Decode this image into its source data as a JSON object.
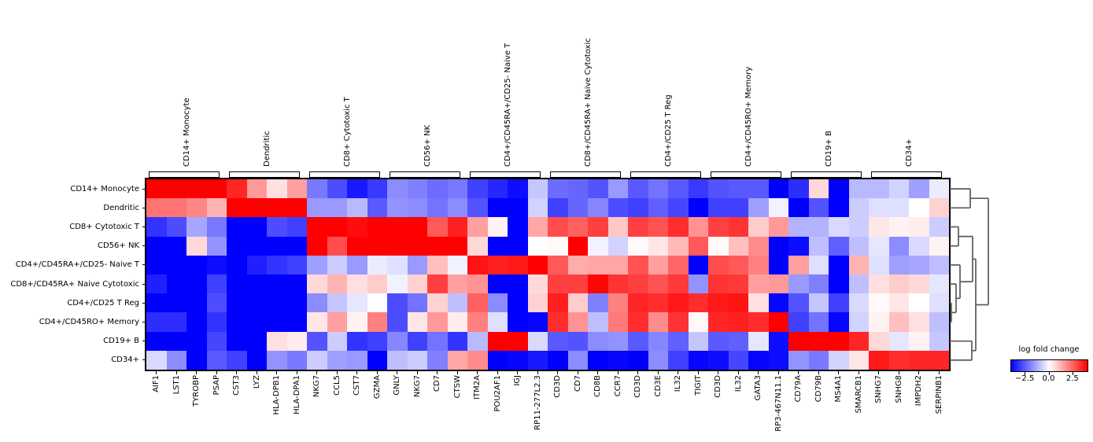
{
  "chart_data": {
    "type": "heatmap",
    "title": "",
    "colormap": "bwr",
    "vmin": -4,
    "vmax": 4,
    "rows": [
      "CD14+ Monocyte",
      "Dendritic",
      "CD8+ Cytotoxic T",
      "CD56+ NK",
      "CD4+/CD45RA+/CD25- Naive T",
      "CD8+/CD45RA+ Naive Cytotoxic",
      "CD4+/CD25 T Reg",
      "CD4+/CD45RO+ Memory",
      "CD19+ B",
      "CD34+"
    ],
    "columns": [
      "AIF1",
      "LST1",
      "TYROBP",
      "PSAP",
      "CST3",
      "LYZ",
      "HLA-DPB1",
      "HLA-DPA1",
      "NKG7",
      "CCL5",
      "CST7",
      "GZMA",
      "GNLY",
      "NKG7",
      "CD7",
      "CTSW",
      "ITM2A",
      "POU2AF1",
      "IGJ",
      "RP11-277L2.3",
      "CD3D",
      "CD7",
      "CD8B",
      "CCR7",
      "CD3D",
      "CD3E",
      "IL32",
      "TIGIT",
      "CD3D",
      "IL32",
      "GATA3",
      "RP3-467N11.1",
      "CD79A",
      "CD79B",
      "MS4A1",
      "SMARCB1",
      "SNHG7",
      "SNHG8",
      "IMPDH2",
      "SERPINB1"
    ],
    "groups": [
      {
        "label": "CD14+ Monocyte",
        "start": 0,
        "end": 3
      },
      {
        "label": "Dendritic",
        "start": 4,
        "end": 7
      },
      {
        "label": "CD8+ Cytotoxic T",
        "start": 8,
        "end": 11
      },
      {
        "label": "CD56+ NK",
        "start": 12,
        "end": 15
      },
      {
        "label": "CD4+/CD45RA+/CD25- Naive T",
        "start": 16,
        "end": 19
      },
      {
        "label": "CD8+/CD45RA+ Naive Cytotoxic",
        "start": 20,
        "end": 23
      },
      {
        "label": "CD4+/CD25 T Reg",
        "start": 24,
        "end": 27
      },
      {
        "label": "CD4+/CD45RO+ Memory",
        "start": 28,
        "end": 31
      },
      {
        "label": "CD19+ B",
        "start": 32,
        "end": 35
      },
      {
        "label": "CD34+",
        "start": 36,
        "end": 39
      }
    ],
    "values": [
      [
        4,
        4,
        4,
        4,
        3.4,
        1.6,
        0.5,
        1.5,
        -2.1,
        -2.8,
        -3.6,
        -3.1,
        -1.8,
        -2.0,
        -2.3,
        -2.1,
        -3.0,
        -3.4,
        -3.8,
        -0.9,
        -2.3,
        -2.4,
        -2.7,
        -1.6,
        -2.6,
        -2.2,
        -2.6,
        -3.1,
        -2.7,
        -2.6,
        -2.6,
        -4,
        -3.3,
        0.6,
        -4,
        -1.1,
        -1.1,
        -0.7,
        -1.5,
        -0.3
      ],
      [
        2.2,
        2.2,
        1.9,
        1.2,
        4,
        4,
        4,
        4,
        -1.6,
        -1.6,
        -1.1,
        -2.6,
        -1.7,
        -1.8,
        -2.2,
        -1.8,
        -2.7,
        -4,
        -4,
        -0.7,
        -3.0,
        -2.4,
        -1.9,
        -2.8,
        -3.0,
        -2.5,
        -2.9,
        -4,
        -3.0,
        -3.0,
        -1.5,
        -0.2,
        -4,
        -2.7,
        -4,
        -0.8,
        -0.5,
        -0.5,
        0.0,
        0.7
      ],
      [
        -3.2,
        -2.8,
        -1.4,
        -2.1,
        -4,
        -4,
        -2.8,
        -3.0,
        4,
        4,
        3.8,
        4,
        4,
        4,
        2.6,
        3.5,
        1.5,
        0.2,
        -4,
        1.4,
        2.8,
        2.5,
        3.0,
        0.9,
        3.0,
        2.7,
        3.3,
        1.7,
        3.0,
        3.2,
        0.8,
        1.6,
        -1.2,
        -1.2,
        -0.6,
        -0.8,
        0.4,
        0.2,
        0.3,
        -0.8
      ],
      [
        -4,
        -4,
        0.6,
        -1.7,
        -4,
        -4,
        -4,
        -4,
        4,
        2.8,
        4,
        4,
        4,
        4,
        4,
        4,
        0.6,
        -4,
        -4,
        0.0,
        0.1,
        4,
        -0.2,
        -0.7,
        0.1,
        0.4,
        1.1,
        2.6,
        0.1,
        1.0,
        1.8,
        -4,
        -3.8,
        -1.0,
        -2.5,
        -1.0,
        -0.4,
        -1.8,
        -0.6,
        0.2
      ],
      [
        -4,
        -4,
        -4,
        -3.8,
        -4,
        -3.5,
        -3.2,
        -3.0,
        -1.5,
        -0.8,
        -1.6,
        -0.3,
        -0.5,
        -1.6,
        1.0,
        -0.2,
        3.7,
        3.5,
        3.6,
        4,
        2.6,
        1.3,
        1.4,
        1.4,
        2.7,
        1.5,
        2.4,
        -4,
        2.8,
        2.6,
        2.0,
        -4,
        1.5,
        -0.5,
        -4,
        1.2,
        -0.5,
        -1.5,
        -1.4,
        -1.0
      ],
      [
        -3.5,
        -4,
        -4,
        -3.0,
        -4,
        -4,
        -4,
        -4,
        0.6,
        1.2,
        0.5,
        0.8,
        -0.2,
        0.7,
        3.0,
        1.5,
        1.7,
        -4,
        -4,
        0.6,
        3.0,
        3.0,
        3.9,
        3.2,
        3.0,
        2.7,
        3.1,
        -1.7,
        3.2,
        3.1,
        1.5,
        1.6,
        -1.6,
        -2.0,
        -4,
        -1.0,
        0.5,
        0.8,
        0.6,
        -0.4
      ],
      [
        -4,
        -4,
        -4,
        -2.8,
        -4,
        -4,
        -4,
        -4,
        -1.8,
        -0.9,
        -0.4,
        0.0,
        -2.8,
        -2.2,
        0.7,
        -1.0,
        2.5,
        -1.8,
        -4,
        0.7,
        3.5,
        0.8,
        -2.0,
        2.0,
        3.4,
        3.3,
        3.6,
        3.3,
        3.6,
        3.7,
        0.5,
        -3.9,
        -2.7,
        -0.9,
        -3.0,
        -0.6,
        0.1,
        0.4,
        0.0,
        -0.5
      ],
      [
        -3.3,
        -3.3,
        -4,
        -3.2,
        -4,
        -4,
        -4,
        -4,
        0.4,
        1.5,
        0.2,
        2.0,
        -2.8,
        0.4,
        1.6,
        0.3,
        2.0,
        -0.5,
        -4,
        -3.9,
        3.3,
        1.7,
        -1.0,
        2.1,
        3.3,
        1.8,
        3.2,
        0.1,
        3.4,
        3.5,
        3.3,
        4,
        -3.0,
        -2.2,
        -3.9,
        -0.7,
        0.2,
        1.0,
        0.5,
        -1.0
      ],
      [
        -4,
        -4,
        -4,
        -2.9,
        -4,
        -4,
        0.5,
        0.3,
        -2.7,
        -0.8,
        -3.2,
        -3.0,
        -1.9,
        -3.0,
        -2.2,
        -3.2,
        -1.1,
        4,
        4,
        -0.6,
        -2.6,
        -2.7,
        -1.8,
        -1.7,
        -2.6,
        -1.9,
        -2.5,
        -0.9,
        -2.6,
        -2.5,
        -0.4,
        -3.8,
        4,
        4,
        4,
        3.4,
        0.6,
        -0.4,
        0.2,
        -0.9
      ],
      [
        -0.6,
        -1.8,
        -4,
        -2.6,
        -3.0,
        -4,
        -1.7,
        -2.1,
        -0.8,
        -1.5,
        -1.6,
        -4,
        -1.0,
        -0.8,
        -2.0,
        1.4,
        1.8,
        -4,
        -3.9,
        -3.6,
        -4,
        -1.8,
        -4,
        -3.9,
        -4,
        -1.8,
        -3.0,
        -3.9,
        -3.8,
        -2.9,
        -3.9,
        -3.8,
        -1.7,
        -2.1,
        -0.7,
        0.4,
        3.6,
        3.3,
        3.4,
        3.4
      ]
    ],
    "colorbar": {
      "title": "log fold change",
      "tick_labels": [
        "−2.5",
        "0.0",
        "2.5"
      ],
      "tick_values": [
        -2.5,
        0.0,
        2.5
      ]
    },
    "dendrogram": {
      "side": "right",
      "color": "#5a5a5a",
      "segments": [
        [
          [
            0,
            0.5
          ],
          [
            26,
            0.5
          ]
        ],
        [
          [
            0,
            1.5
          ],
          [
            26,
            1.5
          ]
        ],
        [
          [
            26,
            0.5
          ],
          [
            26,
            1.5
          ]
        ],
        [
          [
            26,
            1.0
          ],
          [
            49,
            1.0
          ]
        ],
        [
          [
            0,
            2.5
          ],
          [
            11,
            2.5
          ]
        ],
        [
          [
            0,
            3.5
          ],
          [
            11,
            3.5
          ]
        ],
        [
          [
            11,
            2.5
          ],
          [
            11,
            3.5
          ]
        ],
        [
          [
            11,
            3.0
          ],
          [
            29,
            3.0
          ]
        ],
        [
          [
            0,
            6.5
          ],
          [
            2,
            6.5
          ]
        ],
        [
          [
            0,
            7.5
          ],
          [
            2,
            7.5
          ]
        ],
        [
          [
            2,
            6.5
          ],
          [
            2,
            7.5
          ]
        ],
        [
          [
            2,
            7.0
          ],
          [
            8,
            7.0
          ]
        ],
        [
          [
            0,
            5.5
          ],
          [
            8,
            5.5
          ]
        ],
        [
          [
            8,
            5.5
          ],
          [
            8,
            7.0
          ]
        ],
        [
          [
            8,
            6.25
          ],
          [
            13,
            6.25
          ]
        ],
        [
          [
            0,
            4.5
          ],
          [
            13,
            4.5
          ]
        ],
        [
          [
            13,
            4.5
          ],
          [
            13,
            6.25
          ]
        ],
        [
          [
            13,
            5.38
          ],
          [
            29,
            5.38
          ]
        ],
        [
          [
            29,
            3.0
          ],
          [
            29,
            5.38
          ]
        ],
        [
          [
            29,
            4.19
          ],
          [
            33,
            4.19
          ]
        ],
        [
          [
            0,
            8.5
          ],
          [
            28,
            8.5
          ]
        ],
        [
          [
            0,
            9.5
          ],
          [
            28,
            9.5
          ]
        ],
        [
          [
            28,
            8.5
          ],
          [
            28,
            9.5
          ]
        ],
        [
          [
            28,
            9.0
          ],
          [
            33,
            9.0
          ]
        ],
        [
          [
            33,
            4.19
          ],
          [
            33,
            9.0
          ]
        ],
        [
          [
            33,
            6.59
          ],
          [
            49,
            6.59
          ]
        ],
        [
          [
            49,
            1.0
          ],
          [
            49,
            6.59
          ]
        ]
      ]
    }
  }
}
